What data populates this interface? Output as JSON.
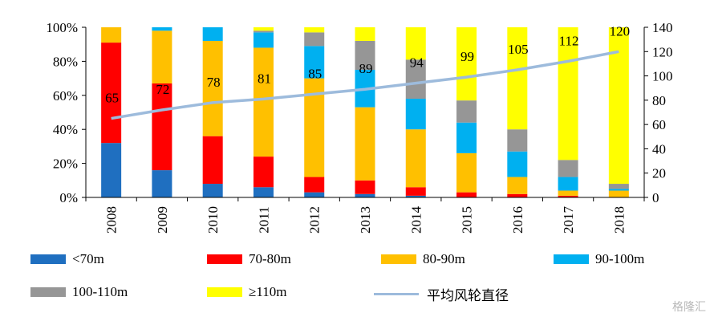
{
  "chart_data": {
    "type": "bar",
    "stacked": true,
    "percent": true,
    "categories": [
      "2008",
      "2009",
      "2010",
      "2011",
      "2012",
      "2013",
      "2014",
      "2015",
      "2016",
      "2017",
      "2018"
    ],
    "y_left": {
      "ticks": [
        "0%",
        "20%",
        "40%",
        "60%",
        "80%",
        "100%"
      ],
      "range": [
        0,
        100
      ]
    },
    "y_right": {
      "ticks": [
        "0",
        "20",
        "40",
        "60",
        "80",
        "100",
        "120",
        "140"
      ],
      "range": [
        0,
        140
      ]
    },
    "series": [
      {
        "name": "<70m",
        "color": "#1f6fc0",
        "values": [
          32,
          16,
          8,
          6,
          3,
          2,
          1,
          0,
          0,
          0,
          0
        ]
      },
      {
        "name": "70-80m",
        "color": "#ff0000",
        "values": [
          59,
          51,
          28,
          18,
          9,
          8,
          5,
          3,
          2,
          1,
          0
        ]
      },
      {
        "name": "80-90m",
        "color": "#ffc000",
        "values": [
          9,
          31,
          56,
          64,
          58,
          43,
          34,
          23,
          10,
          3,
          4
        ]
      },
      {
        "name": "90-100m",
        "color": "#00b0f0",
        "values": [
          0,
          2,
          8,
          9,
          19,
          22,
          18,
          18,
          15,
          8,
          1
        ]
      },
      {
        "name": "100-110m",
        "color": "#969696",
        "values": [
          0,
          0,
          0,
          1,
          8,
          17,
          23,
          13,
          13,
          10,
          3
        ]
      },
      {
        "name": "≥110m",
        "color": "#ffff00",
        "values": [
          0,
          0,
          0,
          2,
          3,
          8,
          19,
          43,
          60,
          78,
          92
        ]
      }
    ],
    "line": {
      "name": "平均风轮直径",
      "color": "#9dbbdc",
      "axis": "right",
      "values": [
        65,
        72,
        78,
        81,
        85,
        89,
        94,
        99,
        105,
        112,
        120
      ],
      "labels": [
        "65",
        "72",
        "78",
        "81",
        "85",
        "89",
        "94",
        "99",
        "105",
        "112",
        "120"
      ]
    }
  },
  "watermark": "格隆汇"
}
